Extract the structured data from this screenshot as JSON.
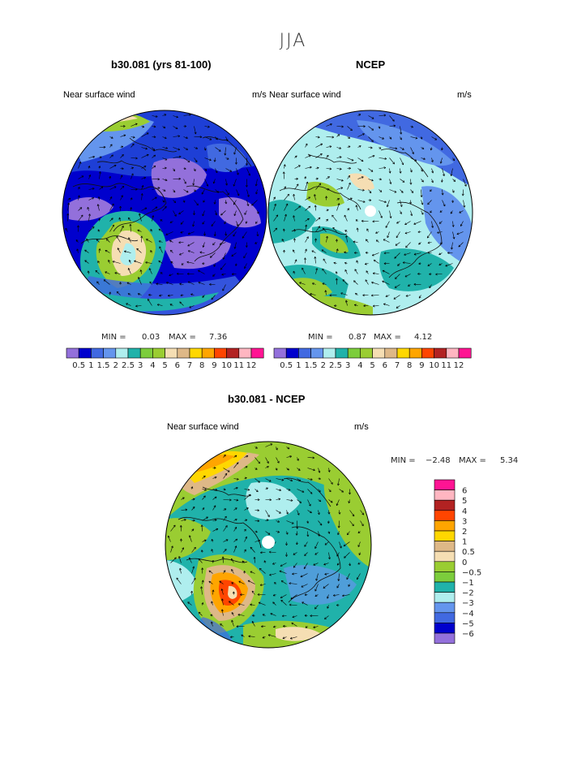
{
  "header": {
    "season": "JJA"
  },
  "panels": [
    {
      "title": "b30.081 (yrs 81-100)",
      "left_label": "Near surface wind",
      "right_label": "m/s",
      "min_label": "MIN =",
      "min": "0.03",
      "max_label": "MAX =",
      "max": "7.36"
    },
    {
      "title": "NCEP",
      "left_label": "Near surface wind",
      "right_label": "m/s",
      "min_label": "MIN =",
      "min": "0.87",
      "max_label": "MAX =",
      "max": "4.12"
    },
    {
      "title": "b30.081 - NCEP",
      "left_label": "Near surface wind",
      "right_label": "m/s",
      "min_label": "MIN =",
      "min": "−2.48",
      "max_label": "MAX =",
      "max": "5.34"
    }
  ],
  "chart_data": [
    {
      "type": "heatmap",
      "title": "b30.081 (yrs 81-100)",
      "projection": "north-polar-stereographic",
      "field": "Near surface wind",
      "units": "m/s",
      "min": 0.03,
      "max": 7.36,
      "levels": [
        "0.5",
        "1",
        "1.5",
        "2",
        "2.5",
        "3",
        "4",
        "5",
        "6",
        "7",
        "8",
        "9",
        "10",
        "11",
        "12"
      ],
      "colors": [
        "#9370db",
        "#0000cd",
        "#4169e1",
        "#6495ed",
        "#afeeee",
        "#20b2aa",
        "#7ccd3c",
        "#9acd32",
        "#f5deb3",
        "#deb887",
        "#ffd700",
        "#ffa500",
        "#ff4500",
        "#b22222",
        "#ffb6c1",
        "#ff1493"
      ]
    },
    {
      "type": "heatmap",
      "title": "NCEP",
      "projection": "north-polar-stereographic",
      "field": "Near surface wind",
      "units": "m/s",
      "min": 0.87,
      "max": 4.12,
      "levels": [
        "0.5",
        "1",
        "1.5",
        "2",
        "2.5",
        "3",
        "4",
        "5",
        "6",
        "7",
        "8",
        "9",
        "10",
        "11",
        "12"
      ],
      "colors": [
        "#9370db",
        "#0000cd",
        "#4169e1",
        "#6495ed",
        "#afeeee",
        "#20b2aa",
        "#7ccd3c",
        "#9acd32",
        "#f5deb3",
        "#deb887",
        "#ffd700",
        "#ffa500",
        "#ff4500",
        "#b22222",
        "#ffb6c1",
        "#ff1493"
      ]
    },
    {
      "type": "heatmap",
      "title": "b30.081 - NCEP",
      "projection": "north-polar-stereographic",
      "field": "Near surface wind",
      "units": "m/s",
      "min": -2.48,
      "max": 5.34,
      "levels": [
        "6",
        "5",
        "4",
        "3",
        "2",
        "1",
        "0.5",
        "0",
        "−0.5",
        "−1",
        "−2",
        "−3",
        "−4",
        "−5",
        "−6"
      ],
      "colors": [
        "#ff1493",
        "#ffb6c1",
        "#b22222",
        "#ff4500",
        "#ffa500",
        "#ffd700",
        "#deb887",
        "#f5deb3",
        "#9acd32",
        "#7ccd3c",
        "#20b2aa",
        "#afeeee",
        "#6495ed",
        "#4169e1",
        "#0000cd",
        "#9370db"
      ]
    }
  ]
}
